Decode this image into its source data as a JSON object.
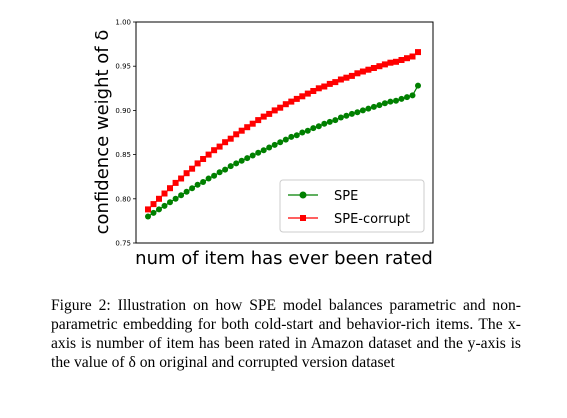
{
  "caption": "Figure 2: Illustration on how SPE model balances parametric and non-parametric embedding for both cold-start and behavior-rich items. The x-axis is number of item has been rated in Amazon dataset and the y-axis is the value of δ on original and corrupted version dataset",
  "chart_data": {
    "type": "line",
    "xlabel": "num of item has ever been rated",
    "ylabel": "confidence weight of δ",
    "ylim": [
      0.75,
      1.0
    ],
    "yticks": [
      "0.75",
      "0.80",
      "0.85",
      "0.90",
      "0.95",
      "1.00"
    ],
    "x_tick_labels_visible": false,
    "grid": false,
    "legend_position": "lower right",
    "n_points": 50,
    "series": [
      {
        "name": "SPE",
        "color": "#008000",
        "marker": "circle",
        "values": [
          0.78,
          0.784,
          0.788,
          0.792,
          0.796,
          0.8,
          0.804,
          0.808,
          0.812,
          0.816,
          0.819,
          0.823,
          0.826,
          0.83,
          0.833,
          0.837,
          0.84,
          0.843,
          0.846,
          0.849,
          0.852,
          0.855,
          0.858,
          0.861,
          0.864,
          0.867,
          0.87,
          0.872,
          0.875,
          0.877,
          0.88,
          0.882,
          0.885,
          0.887,
          0.889,
          0.892,
          0.894,
          0.896,
          0.898,
          0.9,
          0.902,
          0.904,
          0.906,
          0.908,
          0.91,
          0.911,
          0.913,
          0.915,
          0.917,
          0.928
        ]
      },
      {
        "name": "SPE-corrupt",
        "color": "#ff0000",
        "marker": "square",
        "values": [
          0.788,
          0.794,
          0.8,
          0.806,
          0.812,
          0.818,
          0.823,
          0.829,
          0.834,
          0.84,
          0.845,
          0.85,
          0.855,
          0.859,
          0.864,
          0.868,
          0.873,
          0.877,
          0.881,
          0.885,
          0.889,
          0.893,
          0.896,
          0.9,
          0.903,
          0.907,
          0.91,
          0.913,
          0.916,
          0.919,
          0.922,
          0.925,
          0.927,
          0.93,
          0.932,
          0.935,
          0.937,
          0.939,
          0.942,
          0.944,
          0.946,
          0.948,
          0.95,
          0.952,
          0.954,
          0.955,
          0.957,
          0.959,
          0.961,
          0.966
        ]
      }
    ]
  }
}
